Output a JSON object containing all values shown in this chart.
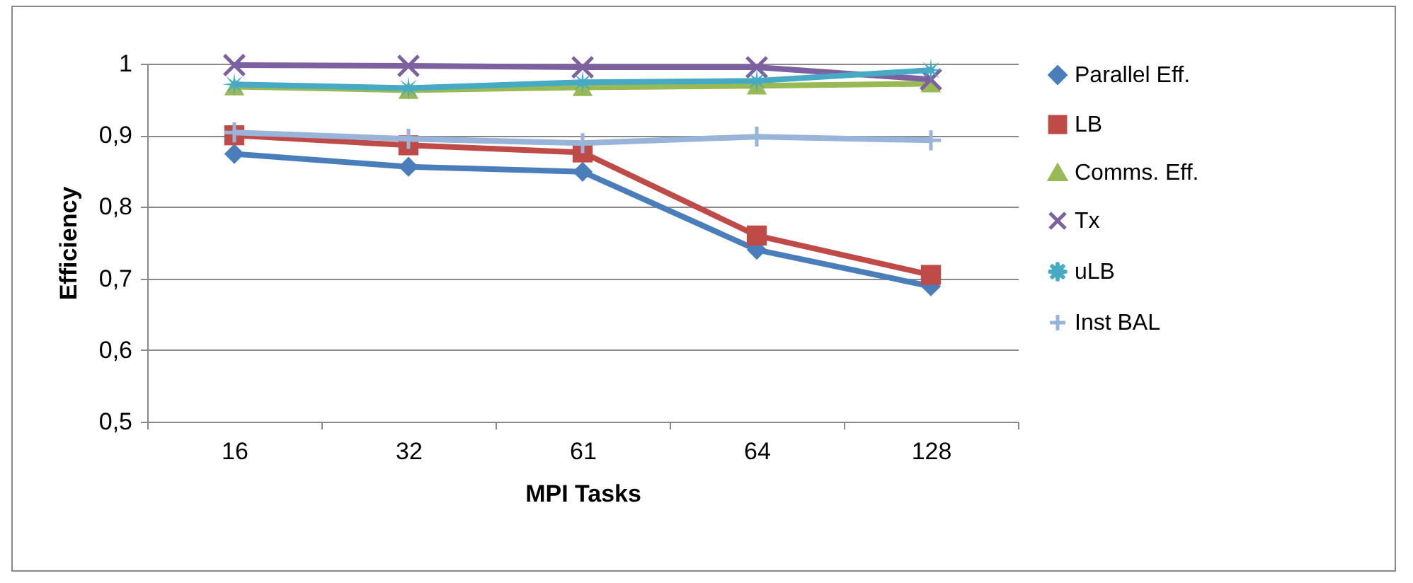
{
  "chart_data": {
    "type": "line",
    "xlabel": "MPI Tasks",
    "ylabel": "Efficiency",
    "categories": [
      "16",
      "32",
      "61",
      "64",
      "128"
    ],
    "ylim": [
      0.5,
      1
    ],
    "yticks": [
      {
        "value": 0.5,
        "label": "0,5"
      },
      {
        "value": 0.6,
        "label": "0,6"
      },
      {
        "value": 0.7,
        "label": "0,7"
      },
      {
        "value": 0.8,
        "label": "0,8"
      },
      {
        "value": 0.9,
        "label": "0,9"
      },
      {
        "value": 1,
        "label": "1"
      }
    ],
    "grid": "y",
    "legend": "right",
    "series": [
      {
        "name": "Parallel Eff.",
        "color": "#4a7ebb",
        "marker": "diamond",
        "values": [
          0.874,
          0.856,
          0.849,
          0.74,
          0.689
        ]
      },
      {
        "name": "LB",
        "color": "#be4b48",
        "marker": "square",
        "values": [
          0.9,
          0.886,
          0.876,
          0.76,
          0.705
        ]
      },
      {
        "name": "Comms. Eff.",
        "color": "#98b954",
        "marker": "triangle",
        "values": [
          0.968,
          0.963,
          0.967,
          0.969,
          0.972
        ]
      },
      {
        "name": "Tx",
        "color": "#7d60a0",
        "marker": "cross",
        "values": [
          0.998,
          0.997,
          0.995,
          0.995,
          0.978
        ]
      },
      {
        "name": "uLB",
        "color": "#46aac5",
        "marker": "star",
        "values": [
          0.971,
          0.966,
          0.974,
          0.976,
          0.991
        ]
      },
      {
        "name": "Inst BAL",
        "color": "#98b4d9",
        "marker": "plus",
        "values": [
          0.904,
          0.895,
          0.889,
          0.898,
          0.893
        ]
      }
    ]
  }
}
